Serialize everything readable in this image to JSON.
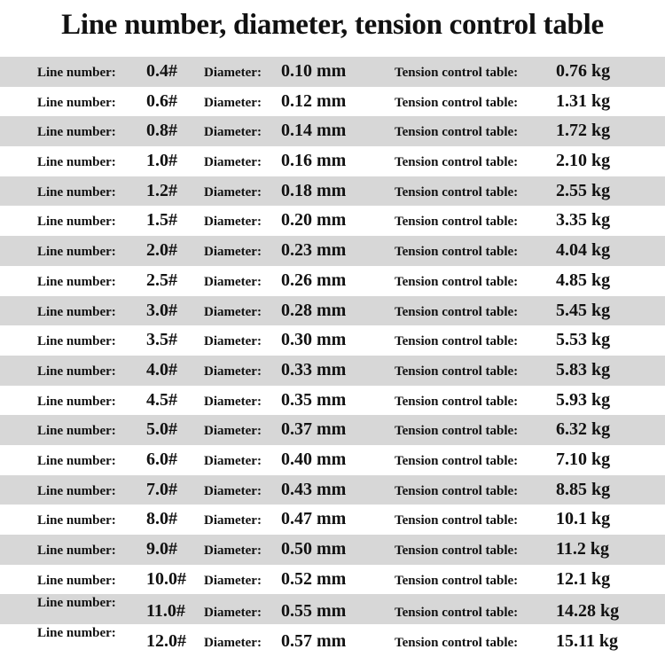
{
  "title": "Line number, diameter, tension control table",
  "labels": {
    "line_number": "Line number:",
    "diameter": "Diameter:",
    "tension": "Tension control table:"
  },
  "colors": {
    "row_alt": "#d7d7d7",
    "row": "#ffffff"
  },
  "rows": [
    {
      "line": "0.4#",
      "diameter": "0.10 mm",
      "tension": "0.76 kg"
    },
    {
      "line": "0.6#",
      "diameter": "0.12 mm",
      "tension": "1.31 kg"
    },
    {
      "line": "0.8#",
      "diameter": "0.14 mm",
      "tension": "1.72 kg"
    },
    {
      "line": "1.0#",
      "diameter": "0.16 mm",
      "tension": "2.10 kg"
    },
    {
      "line": "1.2#",
      "diameter": "0.18 mm",
      "tension": "2.55 kg"
    },
    {
      "line": "1.5#",
      "diameter": "0.20 mm",
      "tension": "3.35 kg"
    },
    {
      "line": "2.0#",
      "diameter": "0.23 mm",
      "tension": "4.04 kg"
    },
    {
      "line": "2.5#",
      "diameter": "0.26 mm",
      "tension": "4.85 kg"
    },
    {
      "line": "3.0#",
      "diameter": "0.28 mm",
      "tension": "5.45 kg"
    },
    {
      "line": "3.5#",
      "diameter": "0.30 mm",
      "tension": "5.53 kg"
    },
    {
      "line": "4.0#",
      "diameter": "0.33 mm",
      "tension": "5.83 kg"
    },
    {
      "line": "4.5#",
      "diameter": "0.35 mm",
      "tension": "5.93 kg"
    },
    {
      "line": "5.0#",
      "diameter": "0.37 mm",
      "tension": "6.32 kg"
    },
    {
      "line": "6.0#",
      "diameter": "0.40 mm",
      "tension": "7.10 kg"
    },
    {
      "line": "7.0#",
      "diameter": "0.43 mm",
      "tension": "8.85 kg"
    },
    {
      "line": "8.0#",
      "diameter": "0.47 mm",
      "tension": "10.1 kg"
    },
    {
      "line": "9.0#",
      "diameter": "0.50 mm",
      "tension": "11.2 kg"
    },
    {
      "line": "10.0#",
      "diameter": "0.52 mm",
      "tension": "12.1 kg"
    },
    {
      "line": "11.0#",
      "diameter": "0.55 mm",
      "tension": "14.28 kg"
    },
    {
      "line": "12.0#",
      "diameter": "0.57 mm",
      "tension": "15.11 kg"
    }
  ]
}
